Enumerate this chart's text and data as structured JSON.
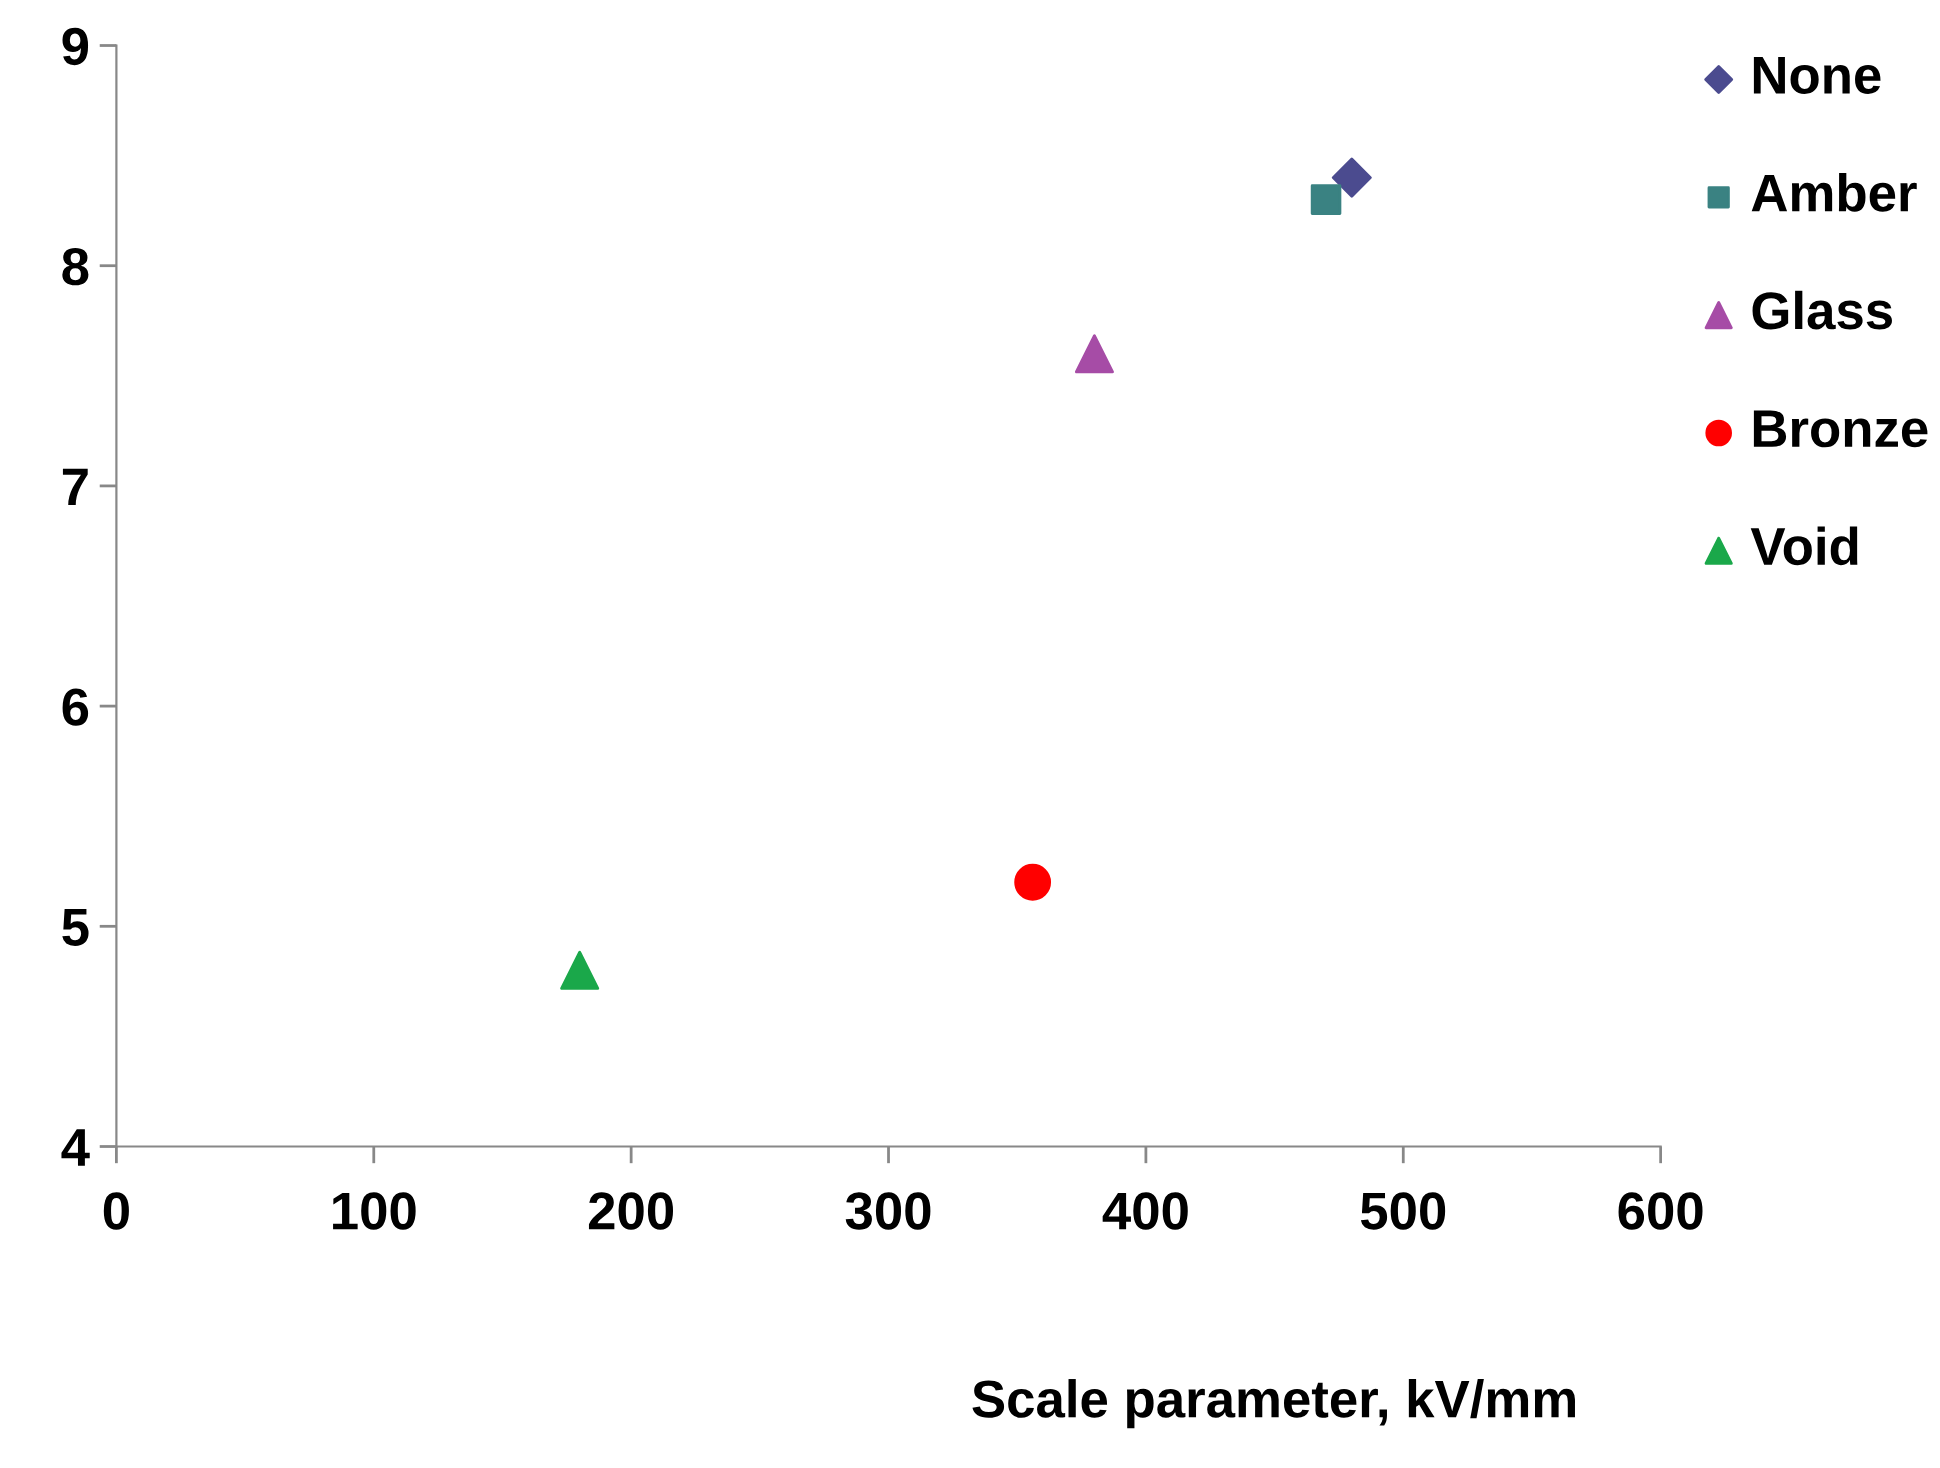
{
  "chart_data": {
    "type": "scatter",
    "xlabel": "Scale parameter, kV/mm",
    "xlim": [
      0,
      600
    ],
    "xticks": [
      0,
      100,
      200,
      300,
      400,
      500,
      600
    ],
    "ylim": [
      4,
      9
    ],
    "yticks": [
      4,
      5,
      6,
      7,
      8,
      9
    ],
    "grid": false,
    "legend": "top right",
    "series": [
      {
        "name": "None",
        "color": "#4b4b8f",
        "marker": "diamond",
        "x": [
          480
        ],
        "values": [
          8.4
        ]
      },
      {
        "name": "Amber",
        "color": "#3a8282",
        "marker": "square",
        "x": [
          470
        ],
        "values": [
          8.3
        ]
      },
      {
        "name": "Glass",
        "color": "#a64ca6",
        "marker": "triangle",
        "x": [
          380
        ],
        "values": [
          7.6
        ]
      },
      {
        "name": "Bronze",
        "color": "#ff0000",
        "marker": "circle",
        "x": [
          356
        ],
        "values": [
          5.2
        ]
      },
      {
        "name": "Void",
        "color": "#1aa84a",
        "marker": "triangle",
        "x": [
          180
        ],
        "values": [
          4.8
        ]
      }
    ]
  }
}
